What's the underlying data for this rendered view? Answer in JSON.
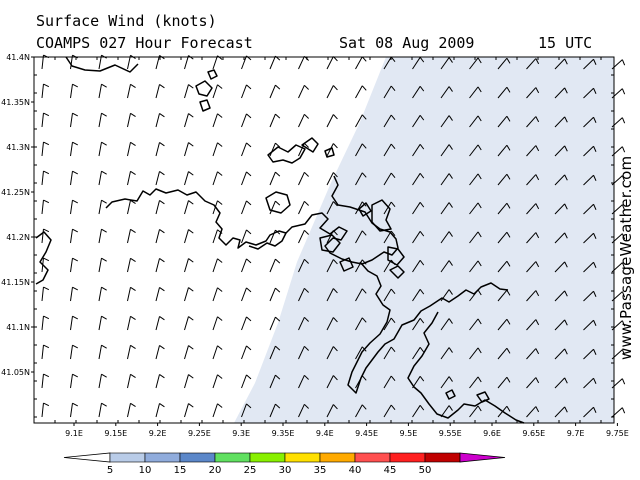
{
  "header": {
    "title": "Surface Wind (knots)",
    "model": "COAMPS 027 Hour Forecast",
    "date": "Sat 08 Aug 2009",
    "time": "15 UTC"
  },
  "watermark": "www.PassageWeather.com",
  "axes": {
    "lat_labels": [
      "41.4N",
      "41.35N",
      "41.3N",
      "41.25N",
      "41.2N",
      "41.15N",
      "41.1N",
      "41.05N"
    ],
    "lat_values": [
      41.4,
      41.35,
      41.3,
      41.25,
      41.2,
      41.15,
      41.1,
      41.05
    ],
    "lon_labels": [
      "9.1E",
      "9.15E",
      "9.2E",
      "9.25E",
      "9.3E",
      "9.35E",
      "9.4E",
      "9.45E",
      "9.5E",
      "9.55E",
      "9.6E",
      "9.65E",
      "9.7E",
      "9.75E"
    ],
    "lon_values": [
      9.1,
      9.15,
      9.2,
      9.25,
      9.3,
      9.35,
      9.4,
      9.45,
      9.5,
      9.55,
      9.6,
      9.65,
      9.7,
      9.75
    ]
  },
  "colorbar": {
    "labels": [
      "5",
      "10",
      "15",
      "20",
      "25",
      "30",
      "35",
      "40",
      "45",
      "50"
    ],
    "colors": [
      "#e4ebf6",
      "#b9cce8",
      "#90acdc",
      "#5b87c9",
      "#60e060",
      "#88f000",
      "#ffe000",
      "#ffaa00",
      "#ff5050",
      "#ff2020",
      "#c00000",
      "#cc00cc"
    ]
  },
  "colors": {
    "wind_5_10kt_fill": "#e1e8f3",
    "land_outline": "#000000",
    "barb": "#000000"
  }
}
